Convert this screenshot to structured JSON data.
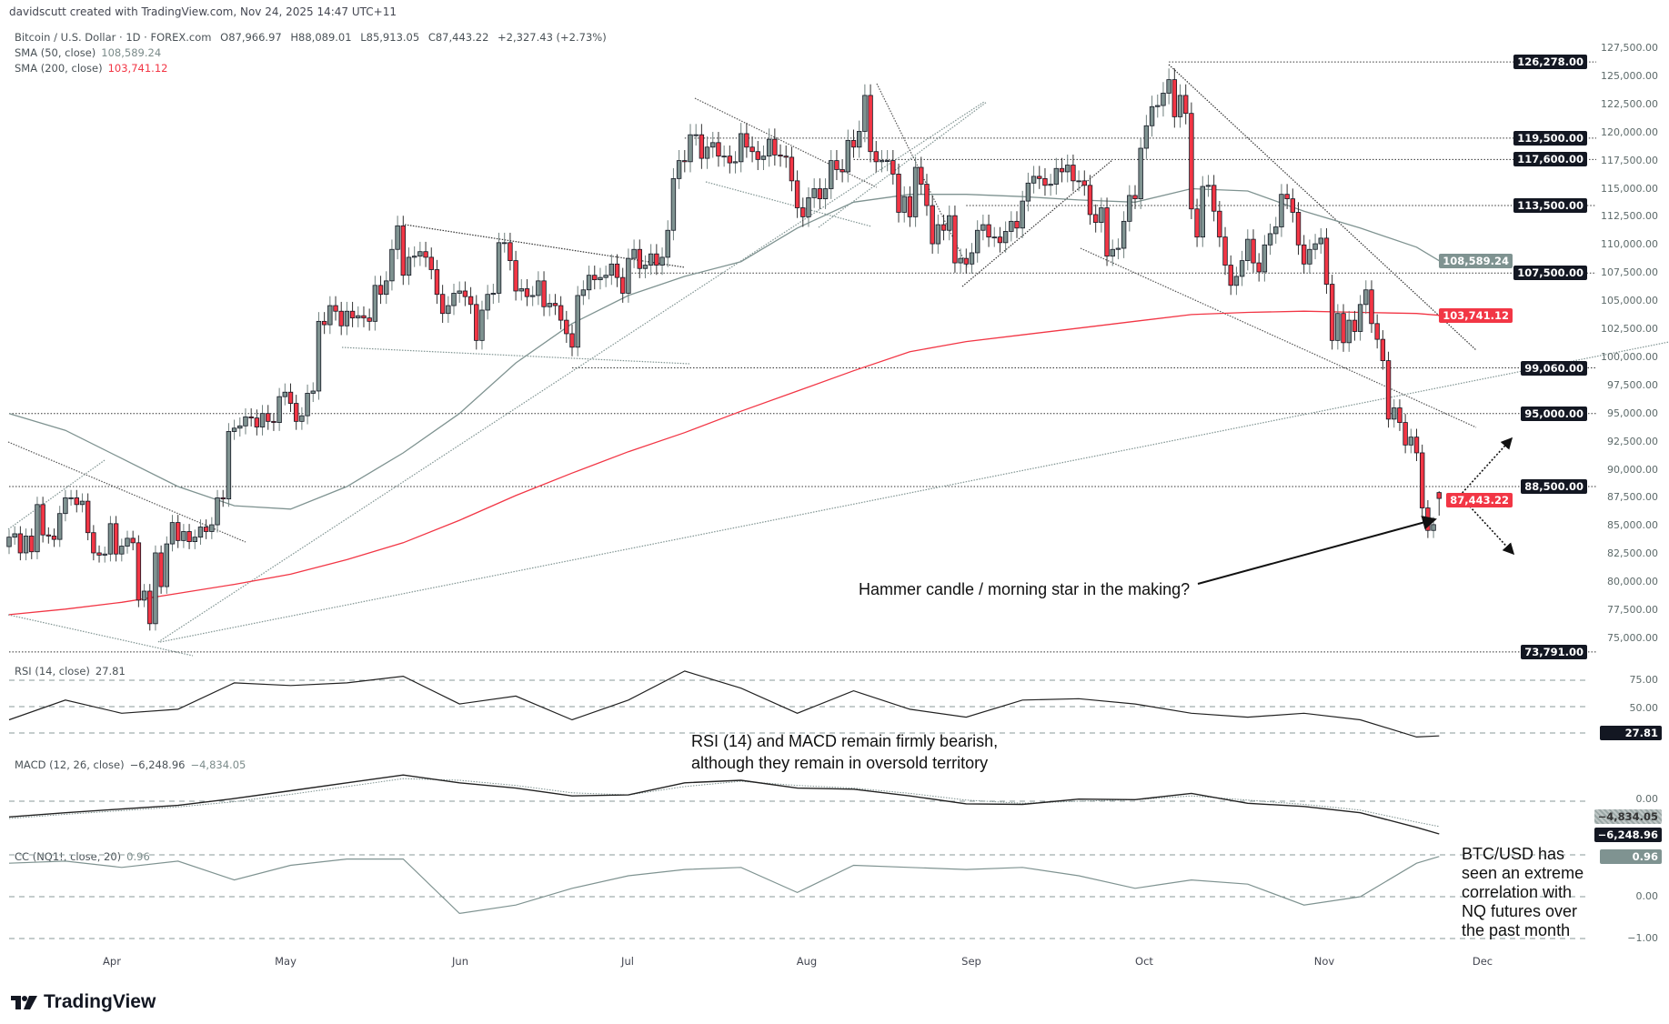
{
  "header": {
    "credit": "davidscutt created with TradingView.com, Nov 24, 2025 14:47 UTC+11",
    "symbol": "Bitcoin / U.S. Dollar · 1D · FOREX.com",
    "open": "O87,966.97",
    "high": "H88,089.01",
    "low": "L85,913.05",
    "close": "C87,443.22",
    "change": "+2,327.43 (+2.73%)"
  },
  "indicators": {
    "sma50": {
      "label": "SMA (50, close)",
      "value": "108,589.24",
      "color": "#7f9391"
    },
    "sma200": {
      "label": "SMA (200, close)",
      "value": "103,741.12",
      "color": "#f23645"
    },
    "rsi": {
      "label": "RSI (14, close)",
      "value": "27.81"
    },
    "macd": {
      "label": "MACD (12, 26, close)",
      "value": "−6,248.96",
      "signal": "−4,834.05"
    },
    "cc": {
      "label": "CC (NQ1!, close, 20)",
      "value": "0.96"
    }
  },
  "colors": {
    "up": "#7f9391",
    "down": "#f23645",
    "border": "#131722",
    "sma50": "#7f9391",
    "sma200": "#f23645"
  },
  "price_axis": {
    "ticks": [
      "127,500.00",
      "125,000.00",
      "122,500.00",
      "120,000.00",
      "117,500.00",
      "115,000.00",
      "112,500.00",
      "110,000.00",
      "107,500.00",
      "105,000.00",
      "102,500.00",
      "100,000.00",
      "97,500.00",
      "95,000.00",
      "92,500.00",
      "90,000.00",
      "87,500.00",
      "85,000.00",
      "82,500.00",
      "80,000.00",
      "77,500.00",
      "75,000.00"
    ],
    "levels": [
      "126,278.00",
      "119,500.00",
      "117,600.00",
      "113,500.00",
      "107,500.00",
      "99,060.00",
      "95,000.00",
      "88,500.00",
      "73,791.00"
    ],
    "sma50_tag": "108,589.24",
    "sma200_tag": "103,741.12",
    "last_price_tag": "87,443.22"
  },
  "rsi_axis": {
    "ticks": [
      "75.00",
      "50.00"
    ],
    "tag": "27.81"
  },
  "macd_axis": {
    "ticks": [
      "0.00"
    ],
    "signal_tag": "−4,834.05",
    "macd_tag": "−6,248.96"
  },
  "cc_axis": {
    "ticks": [
      "0.00",
      "−1.00"
    ],
    "tag": "0.96"
  },
  "time_axis": [
    "Apr",
    "May",
    "Jun",
    "Jul",
    "Aug",
    "Sep",
    "Oct",
    "Nov",
    "Dec"
  ],
  "annotations": {
    "hammer": "Hammer candle / morning star in the making?",
    "rsi_line1": "RSI (14) and MACD remain firmly bearish,",
    "rsi_line2": "although they remain in oversold territory",
    "cc_lines": [
      "BTC/USD has",
      "seen an extreme",
      "correlation with",
      "NQ futures over",
      "the past month"
    ]
  },
  "logo": "TradingView",
  "chart_data": {
    "type": "candlestick",
    "interval": "1D",
    "closes": [
      84000,
      84300,
      82600,
      84100,
      82700,
      86900,
      84200,
      84100,
      83800,
      86100,
      87500,
      87500,
      86900,
      87200,
      84400,
      82600,
      82400,
      82500,
      85200,
      82500,
      83200,
      83900,
      83500,
      78400,
      79200,
      76300,
      82600,
      79600,
      83400,
      85300,
      83700,
      84500,
      83600,
      84000,
      84900,
      84500,
      85100,
      87500,
      87400,
      93400,
      93700,
      93900,
      94700,
      94600,
      93800,
      95000,
      94300,
      94200,
      96500,
      96900,
      95900,
      94300,
      94800,
      96800,
      97000,
      103200,
      102900,
      104600,
      104100,
      102800,
      104100,
      103500,
      103700,
      103500,
      103200,
      106400,
      105600,
      106800,
      109600,
      111700,
      107300,
      108900,
      109000,
      109400,
      108900,
      107800,
      105600,
      103900,
      104600,
      105700,
      105900,
      105400,
      104700,
      101500,
      104200,
      105600,
      105700,
      110200,
      110200,
      108600,
      105900,
      106100,
      105400,
      105500,
      106800,
      104500,
      104800,
      104600,
      103300,
      102100,
      100900,
      105500,
      106000,
      107300,
      106900,
      107100,
      107300,
      108300,
      107100,
      105700,
      108800,
      109600,
      107900,
      108200,
      109200,
      108200,
      108900,
      111300,
      115900,
      117500,
      117400,
      119800,
      119800,
      117700,
      118700,
      119100,
      117900,
      117900,
      117300,
      117400,
      119900,
      118700,
      118300,
      117600,
      117900,
      119400,
      118000,
      117900,
      117800,
      115700,
      113300,
      112500,
      114200,
      115000,
      114100,
      115000,
      117500,
      116700,
      116500,
      119300,
      118700,
      120100,
      123300,
      118300,
      117400,
      117500,
      117500,
      116300,
      112900,
      114300,
      112500,
      116900,
      115400,
      113500,
      110100,
      111800,
      111300,
      112600,
      108400,
      108800,
      108300,
      109300,
      111300,
      111800,
      110700,
      110700,
      110200,
      111200,
      112100,
      111500,
      113900,
      115500,
      116100,
      115900,
      115300,
      115400,
      116800,
      116500,
      117100,
      115700,
      115700,
      115300,
      112700,
      112000,
      113300,
      109000,
      109600,
      109700,
      112100,
      114400,
      114100,
      118600,
      120600,
      122300,
      122400,
      123500,
      124700,
      121400,
      123300,
      121700,
      113200,
      110700,
      115200,
      115300,
      113000,
      110700,
      108200,
      106400,
      107200,
      108600,
      110500,
      108400,
      107600,
      110000,
      111000,
      111600,
      114500,
      114100,
      112900,
      110000,
      108300,
      109600,
      110100,
      110600,
      106500,
      101500,
      103900,
      101300,
      103300,
      102300,
      104700,
      106000,
      103000,
      101600,
      99700,
      94500,
      95500,
      94200,
      92200,
      92900,
      91500,
      86600,
      84600,
      85116,
      87443.22
    ],
    "last_candle": {
      "open": 87966.97,
      "high": 88089.01,
      "low": 85913.05,
      "close": 87443.22
    },
    "sma50_every_10_days": [
      95000,
      93500,
      91000,
      88500,
      86800,
      86500,
      88500,
      91500,
      95000,
      99500,
      103000,
      105500,
      107200,
      108500,
      111500,
      113800,
      114500,
      114500,
      114300,
      114000,
      113800,
      115000,
      114800,
      113000,
      111500,
      109800,
      108589.24
    ],
    "sma200_every_10_days": [
      77100,
      77600,
      78200,
      79000,
      79800,
      80700,
      82000,
      83500,
      85500,
      87700,
      89700,
      91600,
      93300,
      95200,
      97000,
      98800,
      100500,
      101400,
      102000,
      102600,
      103200,
      103800,
      104000,
      104100,
      104000,
      103900,
      103741.12
    ],
    "rsi_every_10_days": [
      40,
      55,
      45,
      48,
      68,
      66,
      68,
      73,
      52,
      58,
      40,
      55,
      77,
      64,
      45,
      62,
      48,
      42,
      55,
      56,
      52,
      45,
      42,
      45,
      40,
      27,
      27.81
    ],
    "macd_every_10_days": [
      -3000,
      -2200,
      -1500,
      -800,
      500,
      2000,
      3500,
      5000,
      3500,
      2500,
      1000,
      1200,
      3500,
      4000,
      2500,
      2300,
      1000,
      -500,
      -600,
      400,
      300,
      1500,
      -400,
      -1000,
      -2200,
      -5000,
      -6248.96
    ],
    "signal_every_10_days": [
      -3300,
      -2500,
      -1800,
      -1100,
      -100,
      1300,
      2800,
      4300,
      4000,
      3000,
      1600,
      1200,
      2800,
      3800,
      3000,
      2500,
      1500,
      200,
      -400,
      0,
      300,
      1000,
      200,
      -600,
      -1700,
      -4000,
      -4834.05
    ],
    "cc_every_10_days": [
      0.8,
      0.85,
      0.7,
      0.85,
      0.4,
      0.75,
      0.9,
      0.9,
      -0.4,
      -0.2,
      0.2,
      0.5,
      0.65,
      0.7,
      0.1,
      0.75,
      0.7,
      0.65,
      0.7,
      0.5,
      0.2,
      0.4,
      0.3,
      -0.2,
      0.0,
      0.8,
      0.96
    ],
    "price_ylim": [
      73000,
      127500
    ],
    "rsi_levels": [
      70,
      50,
      30
    ],
    "cc_levels": [
      1,
      0,
      -1
    ]
  }
}
